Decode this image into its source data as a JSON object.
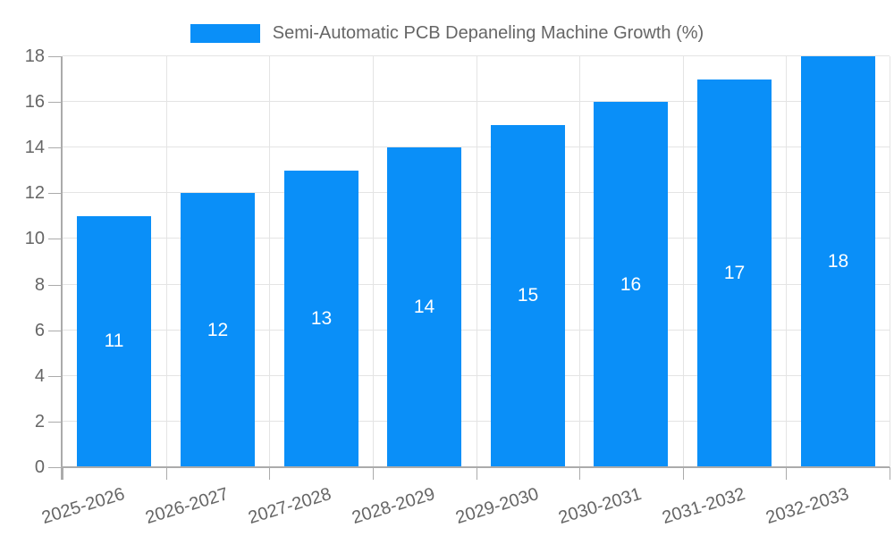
{
  "chart_data": {
    "type": "bar",
    "title": "Semi-Automatic PCB Depaneling Machine Growth (%)",
    "legend": {
      "label": "Semi-Automatic PCB Depaneling Machine Growth (%)",
      "position": "top-center",
      "marker": "rectangle"
    },
    "categories": [
      "2025-2026",
      "2026-2027",
      "2027-2028",
      "2028-2029",
      "2029-2030",
      "2030-2031",
      "2031-2032",
      "2032-2033"
    ],
    "values": [
      11,
      12,
      13,
      14,
      15,
      16,
      17,
      18
    ],
    "value_labels_inside_bars": true,
    "xlabel": "",
    "ylabel": "",
    "ylim": [
      0,
      18
    ],
    "ytick_step": 2,
    "yticks": [
      0,
      2,
      4,
      6,
      8,
      10,
      12,
      14,
      16,
      18
    ],
    "grid": true,
    "x_label_rotation_deg": -17,
    "colors": {
      "bar": "#0A8FF8",
      "grid": "#E4E4E4",
      "axis": "#ABABAB",
      "label_text": "#666666",
      "value_label_text": "#FFFFFF"
    }
  }
}
